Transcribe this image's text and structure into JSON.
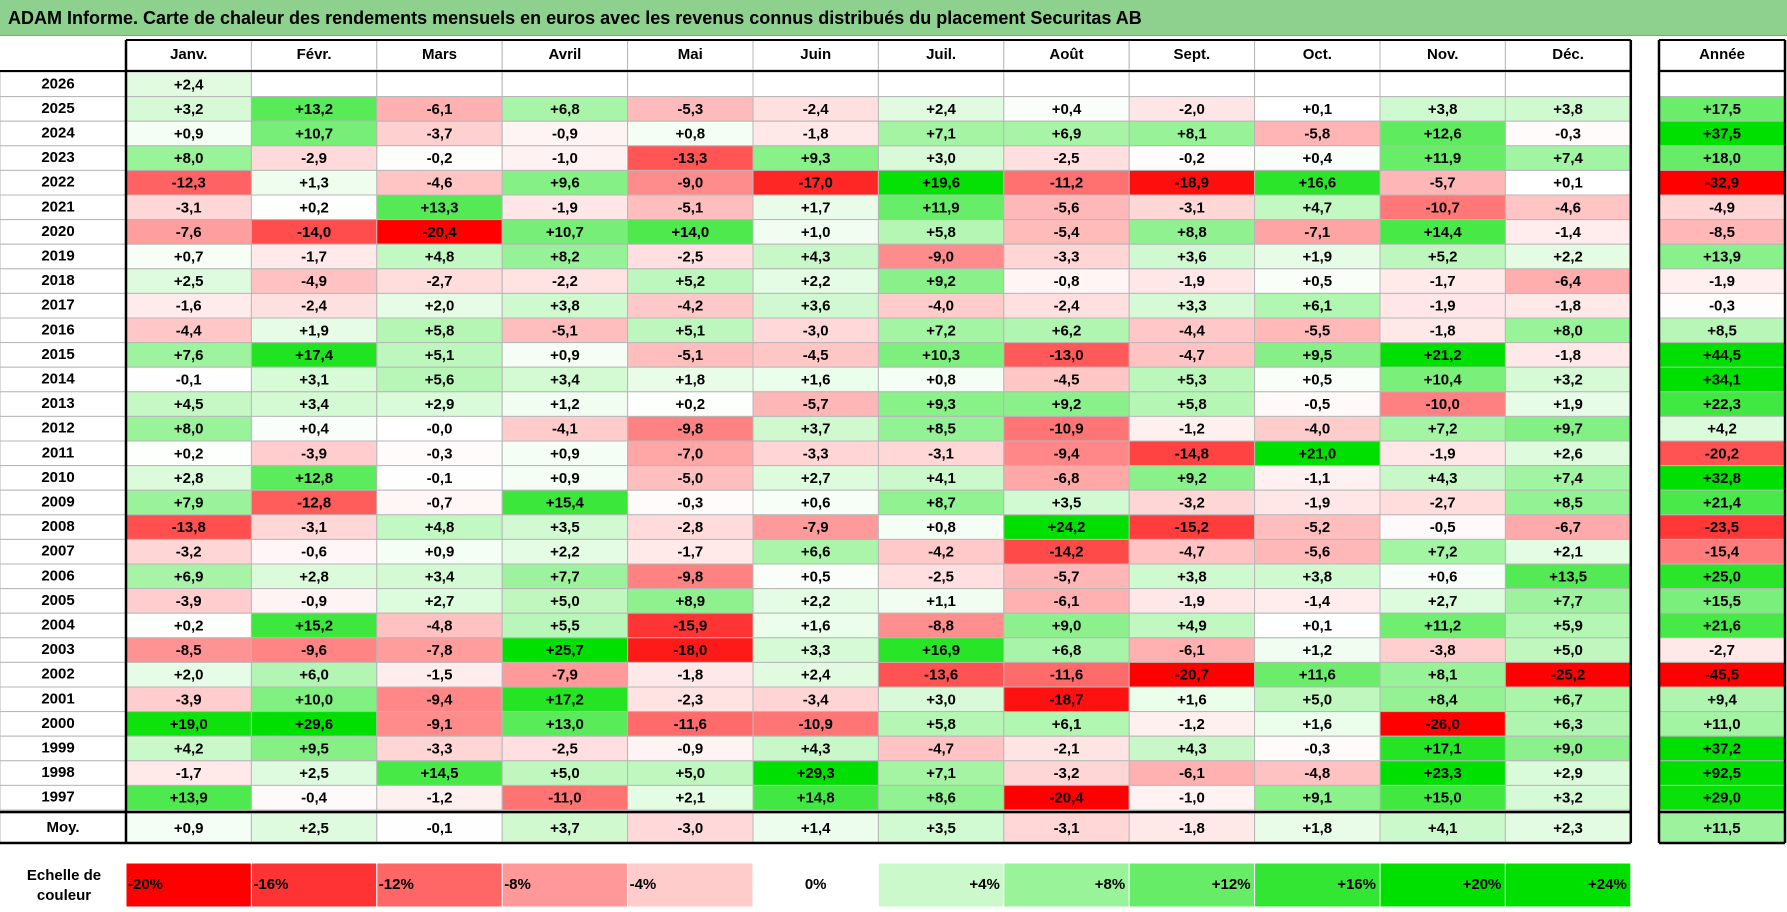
{
  "chart_data": {
    "type": "heatmap",
    "title": "ADAM Informe. Carte de chaleur des rendements mensuels en euros avec les revenus connus distribués du placement Securitas AB",
    "columns": [
      "Janv.",
      "Févr.",
      "Mars",
      "Avril",
      "Mai",
      "Juin",
      "Juil.",
      "Août",
      "Sept.",
      "Oct.",
      "Nov.",
      "Déc."
    ],
    "year_header": "Année",
    "rows": [
      {
        "year": "2026",
        "months": [
          "+2,4",
          "",
          "",
          "",
          "",
          "",
          "",
          "",
          "",
          "",
          "",
          ""
        ],
        "annual": ""
      },
      {
        "year": "2025",
        "months": [
          "+3,2",
          "+13,2",
          "-6,1",
          "+6,8",
          "-5,3",
          "-2,4",
          "+2,4",
          "+0,4",
          "-2,0",
          "+0,1",
          "+3,8",
          "+3,8"
        ],
        "annual": "+17,5"
      },
      {
        "year": "2024",
        "months": [
          "+0,9",
          "+10,7",
          "-3,7",
          "-0,9",
          "+0,8",
          "-1,8",
          "+7,1",
          "+6,9",
          "+8,1",
          "-5,8",
          "+12,6",
          "-0,3"
        ],
        "annual": "+37,5"
      },
      {
        "year": "2023",
        "months": [
          "+8,0",
          "-2,9",
          "-0,2",
          "-1,0",
          "-13,3",
          "+9,3",
          "+3,0",
          "-2,5",
          "-0,2",
          "+0,4",
          "+11,9",
          "+7,4"
        ],
        "annual": "+18,0"
      },
      {
        "year": "2022",
        "months": [
          "-12,3",
          "+1,3",
          "-4,6",
          "+9,6",
          "-9,0",
          "-17,0",
          "+19,6",
          "-11,2",
          "-18,9",
          "+16,6",
          "-5,7",
          "+0,1"
        ],
        "annual": "-32,9"
      },
      {
        "year": "2021",
        "months": [
          "-3,1",
          "+0,2",
          "+13,3",
          "-1,9",
          "-5,1",
          "+1,7",
          "+11,9",
          "-5,6",
          "-3,1",
          "+4,7",
          "-10,7",
          "-4,6"
        ],
        "annual": "-4,9"
      },
      {
        "year": "2020",
        "months": [
          "-7,6",
          "-14,0",
          "-20,4",
          "+10,7",
          "+14,0",
          "+1,0",
          "+5,8",
          "-5,4",
          "+8,8",
          "-7,1",
          "+14,4",
          "-1,4"
        ],
        "annual": "-8,5"
      },
      {
        "year": "2019",
        "months": [
          "+0,7",
          "-1,7",
          "+4,8",
          "+8,2",
          "-2,5",
          "+4,3",
          "-9,0",
          "-3,3",
          "+3,6",
          "+1,9",
          "+5,2",
          "+2,2"
        ],
        "annual": "+13,9"
      },
      {
        "year": "2018",
        "months": [
          "+2,5",
          "-4,9",
          "-2,7",
          "-2,2",
          "+5,2",
          "+2,2",
          "+9,2",
          "-0,8",
          "-1,9",
          "+0,5",
          "-1,7",
          "-6,4"
        ],
        "annual": "-1,9"
      },
      {
        "year": "2017",
        "months": [
          "-1,6",
          "-2,4",
          "+2,0",
          "+3,8",
          "-4,2",
          "+3,6",
          "-4,0",
          "-2,4",
          "+3,3",
          "+6,1",
          "-1,9",
          "-1,8"
        ],
        "annual": "-0,3"
      },
      {
        "year": "2016",
        "months": [
          "-4,4",
          "+1,9",
          "+5,8",
          "-5,1",
          "+5,1",
          "-3,0",
          "+7,2",
          "+6,2",
          "-4,4",
          "-5,5",
          "-1,8",
          "+8,0"
        ],
        "annual": "+8,5"
      },
      {
        "year": "2015",
        "months": [
          "+7,6",
          "+17,4",
          "+5,1",
          "+0,9",
          "-5,1",
          "-4,5",
          "+10,3",
          "-13,0",
          "-4,7",
          "+9,5",
          "+21,2",
          "-1,8"
        ],
        "annual": "+44,5"
      },
      {
        "year": "2014",
        "months": [
          "-0,1",
          "+3,1",
          "+5,6",
          "+3,4",
          "+1,8",
          "+1,6",
          "+0,8",
          "-4,5",
          "+5,3",
          "+0,5",
          "+10,4",
          "+3,2"
        ],
        "annual": "+34,1"
      },
      {
        "year": "2013",
        "months": [
          "+4,5",
          "+3,4",
          "+2,9",
          "+1,2",
          "+0,2",
          "-5,7",
          "+9,3",
          "+9,2",
          "+5,8",
          "-0,5",
          "-10,0",
          "+1,9"
        ],
        "annual": "+22,3"
      },
      {
        "year": "2012",
        "months": [
          "+8,0",
          "+0,4",
          "-0,0",
          "-4,1",
          "-9,8",
          "+3,7",
          "+8,5",
          "-10,9",
          "-1,2",
          "-4,0",
          "+7,2",
          "+9,7"
        ],
        "annual": "+4,2"
      },
      {
        "year": "2011",
        "months": [
          "+0,2",
          "-3,9",
          "-0,3",
          "+0,9",
          "-7,0",
          "-3,3",
          "-3,1",
          "-9,4",
          "-14,8",
          "+21,0",
          "-1,9",
          "+2,6"
        ],
        "annual": "-20,2"
      },
      {
        "year": "2010",
        "months": [
          "+2,8",
          "+12,8",
          "-0,1",
          "+0,9",
          "-5,0",
          "+2,7",
          "+4,1",
          "-6,8",
          "+9,2",
          "-1,1",
          "+4,3",
          "+7,4"
        ],
        "annual": "+32,8"
      },
      {
        "year": "2009",
        "months": [
          "+7,9",
          "-12,8",
          "-0,7",
          "+15,4",
          "-0,3",
          "+0,6",
          "+8,7",
          "+3,5",
          "-3,2",
          "-1,9",
          "-2,7",
          "+8,5"
        ],
        "annual": "+21,4"
      },
      {
        "year": "2008",
        "months": [
          "-13,8",
          "-3,1",
          "+4,8",
          "+3,5",
          "-2,8",
          "-7,9",
          "+0,8",
          "+24,2",
          "-15,2",
          "-5,2",
          "-0,5",
          "-6,7"
        ],
        "annual": "-23,5"
      },
      {
        "year": "2007",
        "months": [
          "-3,2",
          "-0,6",
          "+0,9",
          "+2,2",
          "-1,7",
          "+6,6",
          "-4,2",
          "-14,2",
          "-4,7",
          "-5,6",
          "+7,2",
          "+2,1"
        ],
        "annual": "-15,4"
      },
      {
        "year": "2006",
        "months": [
          "+6,9",
          "+2,8",
          "+3,4",
          "+7,7",
          "-9,8",
          "+0,5",
          "-2,5",
          "-5,7",
          "+3,8",
          "+3,8",
          "+0,6",
          "+13,5"
        ],
        "annual": "+25,0"
      },
      {
        "year": "2005",
        "months": [
          "-3,9",
          "-0,9",
          "+2,7",
          "+5,0",
          "+8,9",
          "+2,2",
          "+1,1",
          "-6,1",
          "-1,9",
          "-1,4",
          "+2,7",
          "+7,7"
        ],
        "annual": "+15,5"
      },
      {
        "year": "2004",
        "months": [
          "+0,2",
          "+15,2",
          "-4,8",
          "+5,5",
          "-15,9",
          "+1,6",
          "-8,8",
          "+9,0",
          "+4,9",
          "+0,1",
          "+11,2",
          "+5,9"
        ],
        "annual": "+21,6"
      },
      {
        "year": "2003",
        "months": [
          "-8,5",
          "-9,6",
          "-7,8",
          "+25,7",
          "-18,0",
          "+3,3",
          "+16,9",
          "+6,8",
          "-6,1",
          "+1,2",
          "-3,8",
          "+5,0"
        ],
        "annual": "-2,7"
      },
      {
        "year": "2002",
        "months": [
          "+2,0",
          "+6,0",
          "-1,5",
          "-7,9",
          "-1,8",
          "+2,4",
          "-13,6",
          "-11,6",
          "-20,7",
          "+11,6",
          "+8,1",
          "-25,2"
        ],
        "annual": "-45,5"
      },
      {
        "year": "2001",
        "months": [
          "-3,9",
          "+10,0",
          "-9,4",
          "+17,2",
          "-2,3",
          "-3,4",
          "+3,0",
          "-18,7",
          "+1,6",
          "+5,0",
          "+8,4",
          "+6,7"
        ],
        "annual": "+9,4"
      },
      {
        "year": "2000",
        "months": [
          "+19,0",
          "+29,6",
          "-9,1",
          "+13,0",
          "-11,6",
          "-10,9",
          "+5,8",
          "+6,1",
          "-1,2",
          "+1,6",
          "-26,0",
          "+6,3"
        ],
        "annual": "+11,0"
      },
      {
        "year": "1999",
        "months": [
          "+4,2",
          "+9,5",
          "-3,3",
          "-2,5",
          "-0,9",
          "+4,3",
          "-4,7",
          "-2,1",
          "+4,3",
          "-0,3",
          "+17,1",
          "+9,0"
        ],
        "annual": "+37,2"
      },
      {
        "year": "1998",
        "months": [
          "-1,7",
          "+2,5",
          "+14,5",
          "+5,0",
          "+5,0",
          "+29,3",
          "+7,1",
          "-3,2",
          "-6,1",
          "-4,8",
          "+23,3",
          "+2,9"
        ],
        "annual": "+92,5"
      },
      {
        "year": "1997",
        "months": [
          "+13,9",
          "-0,4",
          "-1,2",
          "-11,0",
          "+2,1",
          "+14,8",
          "+8,6",
          "-20,4",
          "-1,0",
          "+9,1",
          "+15,0",
          "+3,2"
        ],
        "annual": "+29,0"
      }
    ],
    "average": {
      "label": "Moy.",
      "months": [
        "+0,9",
        "+2,5",
        "-0,1",
        "+3,7",
        "-3,0",
        "+1,4",
        "+3,5",
        "-3,1",
        "-1,8",
        "+1,8",
        "+4,1",
        "+2,3"
      ],
      "annual": "+11,5"
    },
    "scale": {
      "label_line1": "Echelle de",
      "label_line2": "couleur",
      "steps": [
        "-20%",
        "-16%",
        "-12%",
        "-8%",
        "-4%",
        "0%",
        "+4%",
        "+8%",
        "+12%",
        "+16%",
        "+20%",
        "+24%"
      ],
      "step_values": [
        -20,
        -16,
        -12,
        -8,
        -4,
        0,
        4,
        8,
        12,
        16,
        20,
        24
      ]
    },
    "colors": {
      "negative_max": "#ff0000",
      "neutral": "#ffffff",
      "positive_max": "#00e000",
      "title_bg": "#8ed08e",
      "border": "#b7b7b7"
    }
  }
}
